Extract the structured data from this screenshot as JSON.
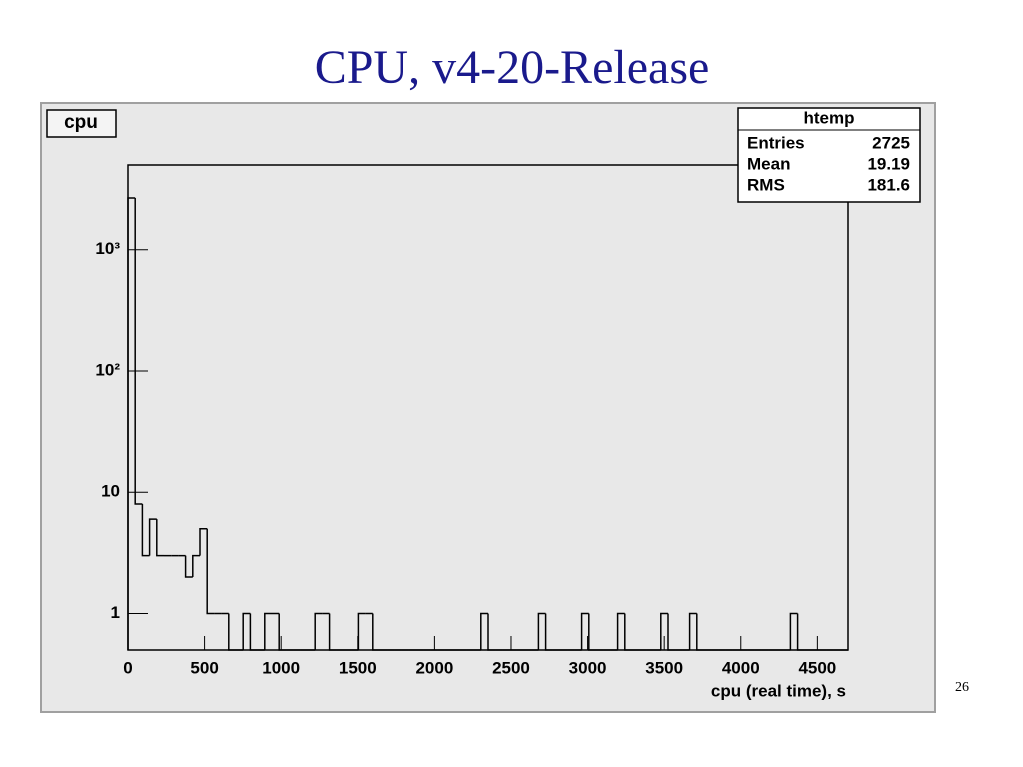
{
  "page_title": "CPU, v4-20-Release",
  "page_number": "26",
  "chart_data": {
    "type": "histogram",
    "name": "cpu",
    "x_label": "cpu (real time), s",
    "bins": [
      0,
      47,
      94,
      141,
      188,
      235,
      282,
      329,
      376,
      423,
      470,
      517,
      564,
      611,
      658,
      705,
      752,
      799,
      846,
      893,
      940,
      987,
      1034,
      1081,
      1128,
      1175,
      1222,
      1269,
      1316,
      1363,
      1410,
      1457,
      1504,
      1551,
      1598,
      1645,
      1692,
      1739,
      1786,
      1833,
      1880,
      1927,
      1974,
      2021,
      2068,
      2115,
      2162,
      2209,
      2256,
      2303,
      2350,
      2397,
      2444,
      2491,
      2538,
      2585,
      2632,
      2679,
      2726,
      2773,
      2820,
      2867,
      2914,
      2961,
      3008,
      3055,
      3102,
      3149,
      3196,
      3243,
      3290,
      3337,
      3384,
      3431,
      3478,
      3525,
      3572,
      3619,
      3666,
      3713,
      3760,
      3807,
      3854,
      3901,
      3948,
      3995,
      4042,
      4089,
      4136,
      4183,
      4230,
      4277,
      4324,
      4371,
      4418,
      4465,
      4512,
      4559,
      4606,
      4653,
      4700
    ],
    "values": [
      2669,
      8,
      3,
      6,
      3,
      3,
      3,
      3,
      2,
      3,
      5,
      1,
      1,
      1,
      0,
      0,
      1,
      0,
      0,
      1,
      1,
      0,
      0,
      0,
      0,
      0,
      1,
      1,
      0,
      0,
      0,
      0,
      1,
      1,
      0,
      0,
      0,
      0,
      0,
      0,
      0,
      0,
      0,
      0,
      0,
      0,
      0,
      0,
      0,
      1,
      0,
      0,
      0,
      0,
      0,
      0,
      0,
      1,
      0,
      0,
      0,
      0,
      0,
      1,
      0,
      0,
      0,
      0,
      1,
      0,
      0,
      0,
      0,
      0,
      1,
      0,
      0,
      0,
      1,
      0,
      0,
      0,
      0,
      0,
      0,
      0,
      0,
      0,
      0,
      0,
      0,
      0,
      1,
      0,
      0,
      0,
      0,
      0,
      0,
      0,
      0
    ],
    "color": "#000000",
    "xlim": [
      0,
      4700
    ],
    "ylim": [
      0.5,
      5000
    ],
    "ylog": true,
    "xticks": [
      0,
      500,
      1000,
      1500,
      2000,
      2500,
      3000,
      3500,
      4000,
      4500
    ],
    "yticks": [
      1,
      10,
      {
        "value": 100,
        "label": "10²"
      },
      {
        "value": 1000,
        "label": "10³"
      }
    ],
    "stats": {
      "title": "htemp",
      "rows": [
        [
          "Entries",
          2725
        ],
        [
          "Mean",
          19.19
        ],
        [
          "RMS",
          181.6
        ]
      ]
    }
  }
}
